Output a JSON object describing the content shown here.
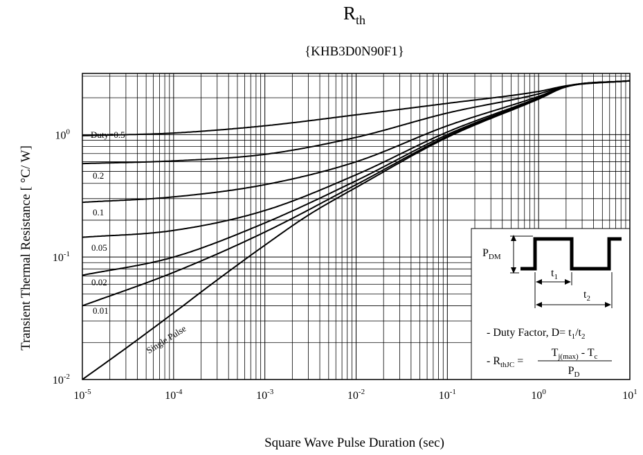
{
  "chart_data": {
    "type": "line",
    "title": {
      "main": "R",
      "sub": "th"
    },
    "subtitle": "{KHB3D0N90F1}",
    "xlabel": "Square Wave Pulse Duration (sec)",
    "ylabel": "Transient Thermal Resistance [ °C/ W]",
    "x_scale": "log",
    "y_scale": "log",
    "xlim": [
      1e-05,
      10
    ],
    "ylim": [
      0.01,
      3.16
    ],
    "grid": true,
    "x_ticks": [
      {
        "base": "10",
        "exp": "-5",
        "value": 1e-05
      },
      {
        "base": "10",
        "exp": "-4",
        "value": 0.0001
      },
      {
        "base": "10",
        "exp": "-3",
        "value": 0.001
      },
      {
        "base": "10",
        "exp": "-2",
        "value": 0.01
      },
      {
        "base": "10",
        "exp": "-1",
        "value": 0.1
      },
      {
        "base": "10",
        "exp": "0",
        "value": 1
      },
      {
        "base": "10",
        "exp": "1",
        "value": 10
      }
    ],
    "y_ticks": [
      {
        "base": "10",
        "exp": "-2",
        "value": 0.01
      },
      {
        "base": "10",
        "exp": "-1",
        "value": 0.1
      },
      {
        "base": "10",
        "exp": "0",
        "value": 1
      }
    ],
    "series": [
      {
        "name": "Duty=0.5",
        "x": [
          1e-05,
          0.0001,
          0.001,
          0.01,
          0.1,
          1,
          2,
          10
        ],
        "y": [
          0.98,
          1.03,
          1.18,
          1.45,
          1.8,
          2.25,
          2.5,
          2.75
        ]
      },
      {
        "name": "0.2",
        "x": [
          1e-05,
          0.0001,
          0.001,
          0.01,
          0.1,
          1,
          2,
          10
        ],
        "y": [
          0.58,
          0.61,
          0.69,
          0.95,
          1.5,
          2.15,
          2.5,
          2.75
        ]
      },
      {
        "name": "0.1",
        "x": [
          1e-05,
          0.0001,
          0.001,
          0.01,
          0.1,
          1,
          2,
          10
        ],
        "y": [
          0.28,
          0.31,
          0.39,
          0.6,
          1.18,
          2.05,
          2.48,
          2.75
        ]
      },
      {
        "name": "0.05",
        "x": [
          1e-05,
          0.0001,
          0.001,
          0.01,
          0.1,
          1,
          2,
          10
        ],
        "y": [
          0.145,
          0.165,
          0.24,
          0.47,
          1.05,
          2.0,
          2.47,
          2.75
        ]
      },
      {
        "name": "0.02",
        "x": [
          1e-05,
          0.0001,
          0.001,
          0.01,
          0.1,
          1,
          2,
          10
        ],
        "y": [
          0.071,
          0.1,
          0.19,
          0.42,
          1.0,
          1.98,
          2.47,
          2.75
        ]
      },
      {
        "name": "0.01",
        "x": [
          1e-05,
          0.0001,
          0.001,
          0.01,
          0.1,
          1,
          2,
          10
        ],
        "y": [
          0.04,
          0.075,
          0.16,
          0.39,
          0.97,
          1.96,
          2.46,
          2.75
        ]
      },
      {
        "name": "Single Pulse",
        "x": [
          1e-05,
          3e-05,
          0.0001,
          0.0003,
          0.001,
          0.003,
          0.01,
          0.1,
          1,
          2,
          10
        ],
        "y": [
          0.01,
          0.018,
          0.035,
          0.065,
          0.125,
          0.22,
          0.37,
          0.95,
          1.95,
          2.45,
          2.75
        ]
      }
    ],
    "inset": {
      "pdm": {
        "base": "P",
        "sub": "DM"
      },
      "t1": {
        "base": "t",
        "sub": "1"
      },
      "t2": {
        "base": "t",
        "sub": "2"
      },
      "duty": {
        "prefix": "- Duty Factor, D= t",
        "s1": "1",
        "mid": "/t",
        "s2": "2"
      },
      "rth": {
        "prefix": "- R",
        "prefix_sub": "thJC",
        "eq": " =",
        "num_t": "T",
        "num_sub": "j(max)",
        "num_mid": " - T",
        "num_sub2": "c",
        "den": "P",
        "den_sub": "D"
      }
    }
  }
}
